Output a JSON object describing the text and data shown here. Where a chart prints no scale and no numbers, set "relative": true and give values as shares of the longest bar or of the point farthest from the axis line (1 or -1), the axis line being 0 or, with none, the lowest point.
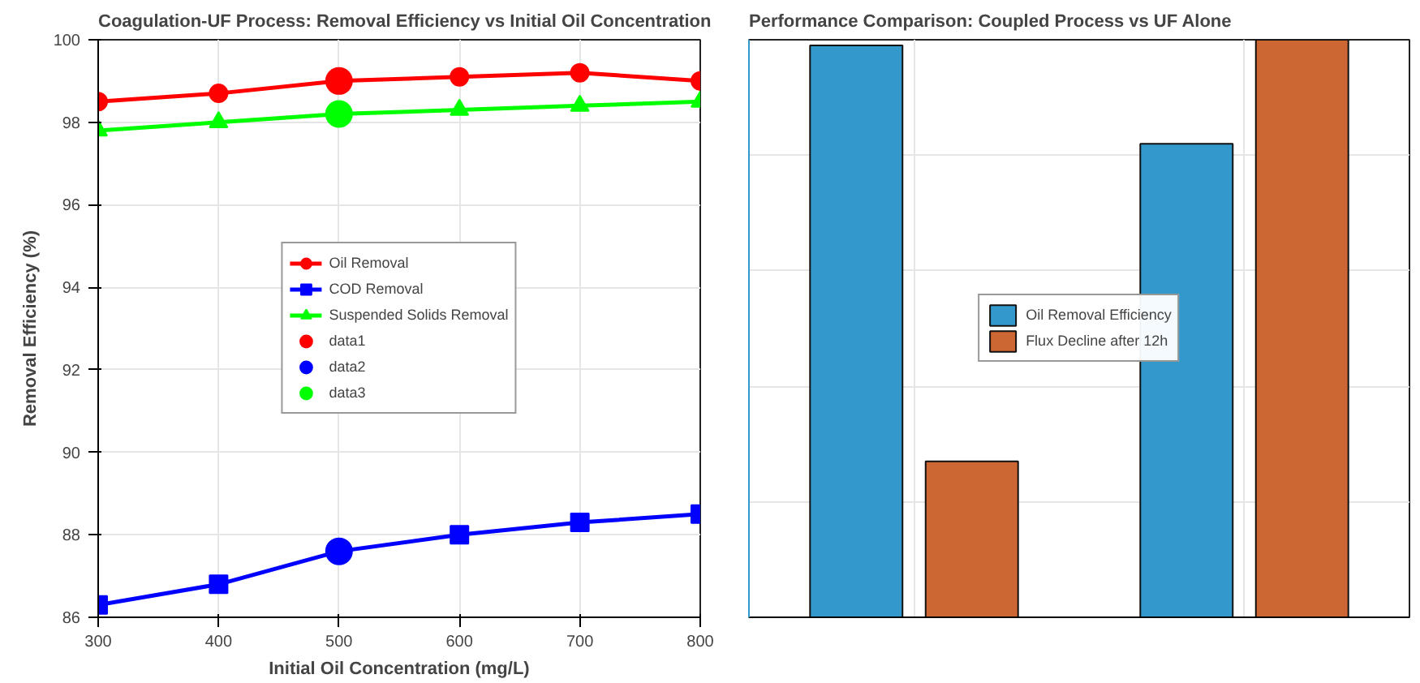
{
  "chart_data": [
    {
      "type": "line",
      "title": "Coagulation-UF Process: Removal Efficiency vs Initial Oil Concentration",
      "xlabel": "Initial Oil Concentration (mg/L)",
      "ylabel": "Removal Efficiency (%)",
      "x": [
        300,
        400,
        500,
        600,
        700,
        800
      ],
      "xlim": [
        300,
        800
      ],
      "xticks": [
        300,
        400,
        500,
        600,
        700,
        800
      ],
      "ylim": [
        86,
        100
      ],
      "yticks": [
        86,
        88,
        90,
        92,
        94,
        96,
        98,
        100
      ],
      "grid": true,
      "legend": "center",
      "series": [
        {
          "name": "Oil Removal",
          "color": "#ff0000",
          "marker": "circle",
          "values": [
            98.5,
            98.7,
            99.0,
            99.1,
            99.2,
            99.0
          ]
        },
        {
          "name": "COD Removal",
          "color": "#0000ff",
          "marker": "square",
          "values": [
            86.3,
            86.8,
            87.6,
            88.0,
            88.3,
            88.5
          ]
        },
        {
          "name": "Suspended Solids Removal",
          "color": "#00ff00",
          "marker": "triangle",
          "values": [
            97.8,
            98.0,
            98.2,
            98.3,
            98.4,
            98.5
          ]
        },
        {
          "name": "data1",
          "type": "scatter",
          "color": "#ff0000",
          "marker": "circle",
          "values": [
            null,
            null,
            99.0,
            null,
            null,
            null
          ]
        },
        {
          "name": "data2",
          "type": "scatter",
          "color": "#0000ff",
          "marker": "circle",
          "values": [
            null,
            null,
            87.6,
            null,
            null,
            null
          ]
        },
        {
          "name": "data3",
          "type": "scatter",
          "color": "#00ff00",
          "marker": "circle",
          "values": [
            null,
            null,
            98.2,
            null,
            null,
            null
          ]
        }
      ]
    },
    {
      "type": "bar",
      "title": "Performance Comparison: Coupled Process vs UF Alone",
      "categories": [
        null,
        null
      ],
      "relative": true,
      "grid": true,
      "legend": "center",
      "series": [
        {
          "name": "Oil Removal Efficiency",
          "color": "#3399cc",
          "values": [
            0.99,
            0.82
          ]
        },
        {
          "name": "Flux Decline after 12h",
          "color": "#cc6633",
          "values": [
            0.27,
            1.0
          ]
        }
      ]
    }
  ]
}
